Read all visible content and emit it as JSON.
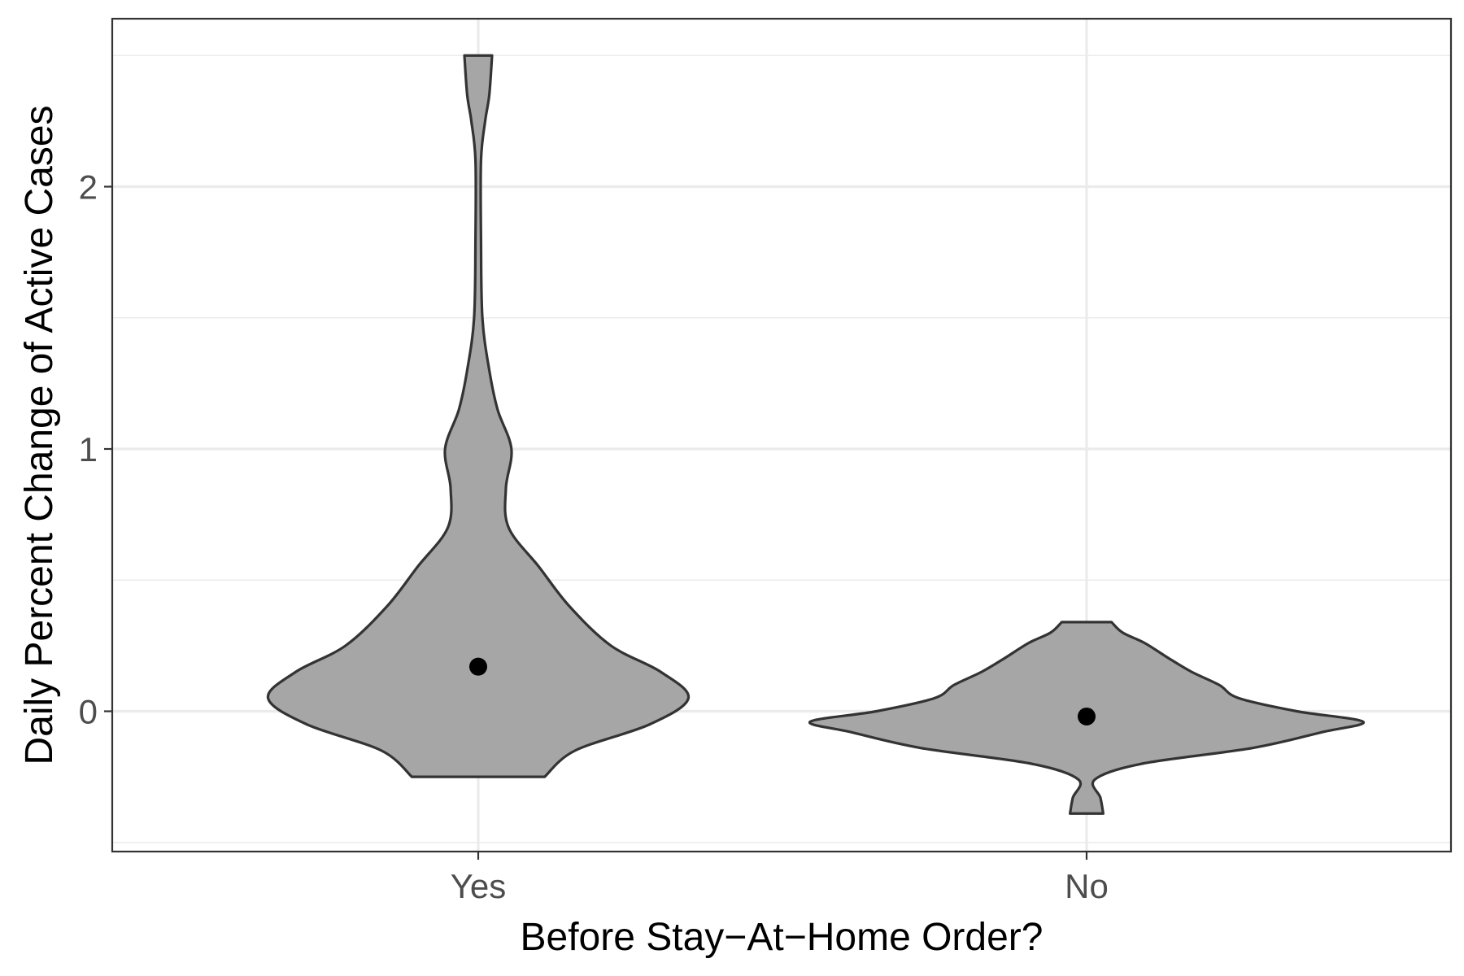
{
  "chart_data": {
    "type": "violin",
    "title": "",
    "xlabel": "Before Stay−At−Home Order?",
    "ylabel": "Daily Percent Change of Active Cases",
    "categories": [
      "Yes",
      "No"
    ],
    "ylim": [
      -0.5,
      2.65
    ],
    "y_ticks": [
      0,
      1,
      2
    ],
    "y_tick_labels": [
      "0",
      "1",
      "2"
    ],
    "grid": true,
    "legend": "none",
    "fill_color": "#a6a6a6",
    "outline_color": "#333333",
    "point_color": "#000000",
    "series": [
      {
        "category": "Yes",
        "mean": 0.17,
        "y_min": -0.25,
        "y_max": 2.5,
        "density_profile": [
          [
            -0.25,
            0.24
          ],
          [
            -0.15,
            0.35
          ],
          [
            -0.05,
            0.62
          ],
          [
            0.05,
            0.76
          ],
          [
            0.15,
            0.66
          ],
          [
            0.25,
            0.48
          ],
          [
            0.4,
            0.33
          ],
          [
            0.55,
            0.22
          ],
          [
            0.7,
            0.11
          ],
          [
            0.85,
            0.1
          ],
          [
            1.0,
            0.12
          ],
          [
            1.15,
            0.07
          ],
          [
            1.3,
            0.04
          ],
          [
            1.5,
            0.015
          ],
          [
            1.8,
            0.01
          ],
          [
            2.1,
            0.01
          ],
          [
            2.25,
            0.025
          ],
          [
            2.35,
            0.04
          ],
          [
            2.5,
            0.05
          ]
        ]
      },
      {
        "category": "No",
        "mean": -0.02,
        "y_min": -0.39,
        "y_max": 0.34,
        "density_profile": [
          [
            -0.39,
            0.06
          ],
          [
            -0.33,
            0.05
          ],
          [
            -0.26,
            0.03
          ],
          [
            -0.2,
            0.2
          ],
          [
            -0.14,
            0.6
          ],
          [
            -0.08,
            0.85
          ],
          [
            -0.04,
            1.0
          ],
          [
            0.0,
            0.76
          ],
          [
            0.05,
            0.55
          ],
          [
            0.1,
            0.48
          ],
          [
            0.15,
            0.38
          ],
          [
            0.2,
            0.3
          ],
          [
            0.26,
            0.21
          ],
          [
            0.3,
            0.13
          ],
          [
            0.34,
            0.09
          ]
        ]
      }
    ]
  }
}
